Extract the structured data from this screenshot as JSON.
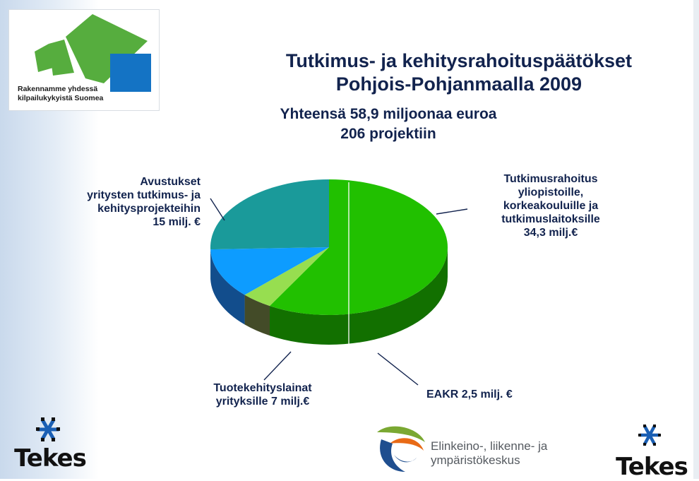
{
  "logo": {
    "line1": "Rakennamme yhdessä",
    "line2": "kilpailukykyistä Suomea",
    "colors": {
      "green": "#56ad3e",
      "blue": "#1473c4"
    }
  },
  "header": {
    "title_line1": "Tutkimus- ja kehitysrahoituspäätökset",
    "title_line2": "Pohjois-Pohjanmaalla 2009",
    "subtitle_line1": "Yhteensä 58,9 miljoonaa euroa",
    "subtitle_line2": "206 projektiin"
  },
  "chart_data": {
    "type": "pie",
    "style": "3d",
    "unit": "milj. €",
    "slices": [
      {
        "key": "tutkimus",
        "label_lines": [
          "Tutkimusrahoitus",
          "yliopistoille,",
          "korkeakouluille ja",
          "tutkimuslaitoksille",
          "34,3 milj.€"
        ],
        "value": 34.3,
        "color": "#21c000",
        "side_color": "#127000"
      },
      {
        "key": "eakr",
        "label_lines": [
          "EAKR 2,5 milj. €"
        ],
        "value": 2.5,
        "color": "#97de50",
        "side_color": "#434b28"
      },
      {
        "key": "tuote",
        "label_lines": [
          "Tuotekehityslainat",
          "yrityksille 7 milj.€"
        ],
        "value": 7,
        "color": "#0d9cff",
        "side_color": "#124d8c"
      },
      {
        "key": "avustukset",
        "label_lines": [
          "Avustukset",
          "yritysten tutkimus- ja",
          "kehitysprojekteihin",
          "15 milj. €"
        ],
        "value": 15,
        "color": "#1a9a9a",
        "side_color": "#0b6266"
      }
    ]
  },
  "footer": {
    "tekes_left": "Tekes",
    "tekes_right": "Tekes",
    "ely_line1": "Elinkeino-, liikenne- ja",
    "ely_line2": "ympäristökeskus",
    "icons": [
      "tekes-snowflake-icon",
      "ely-leaf-icon"
    ]
  }
}
